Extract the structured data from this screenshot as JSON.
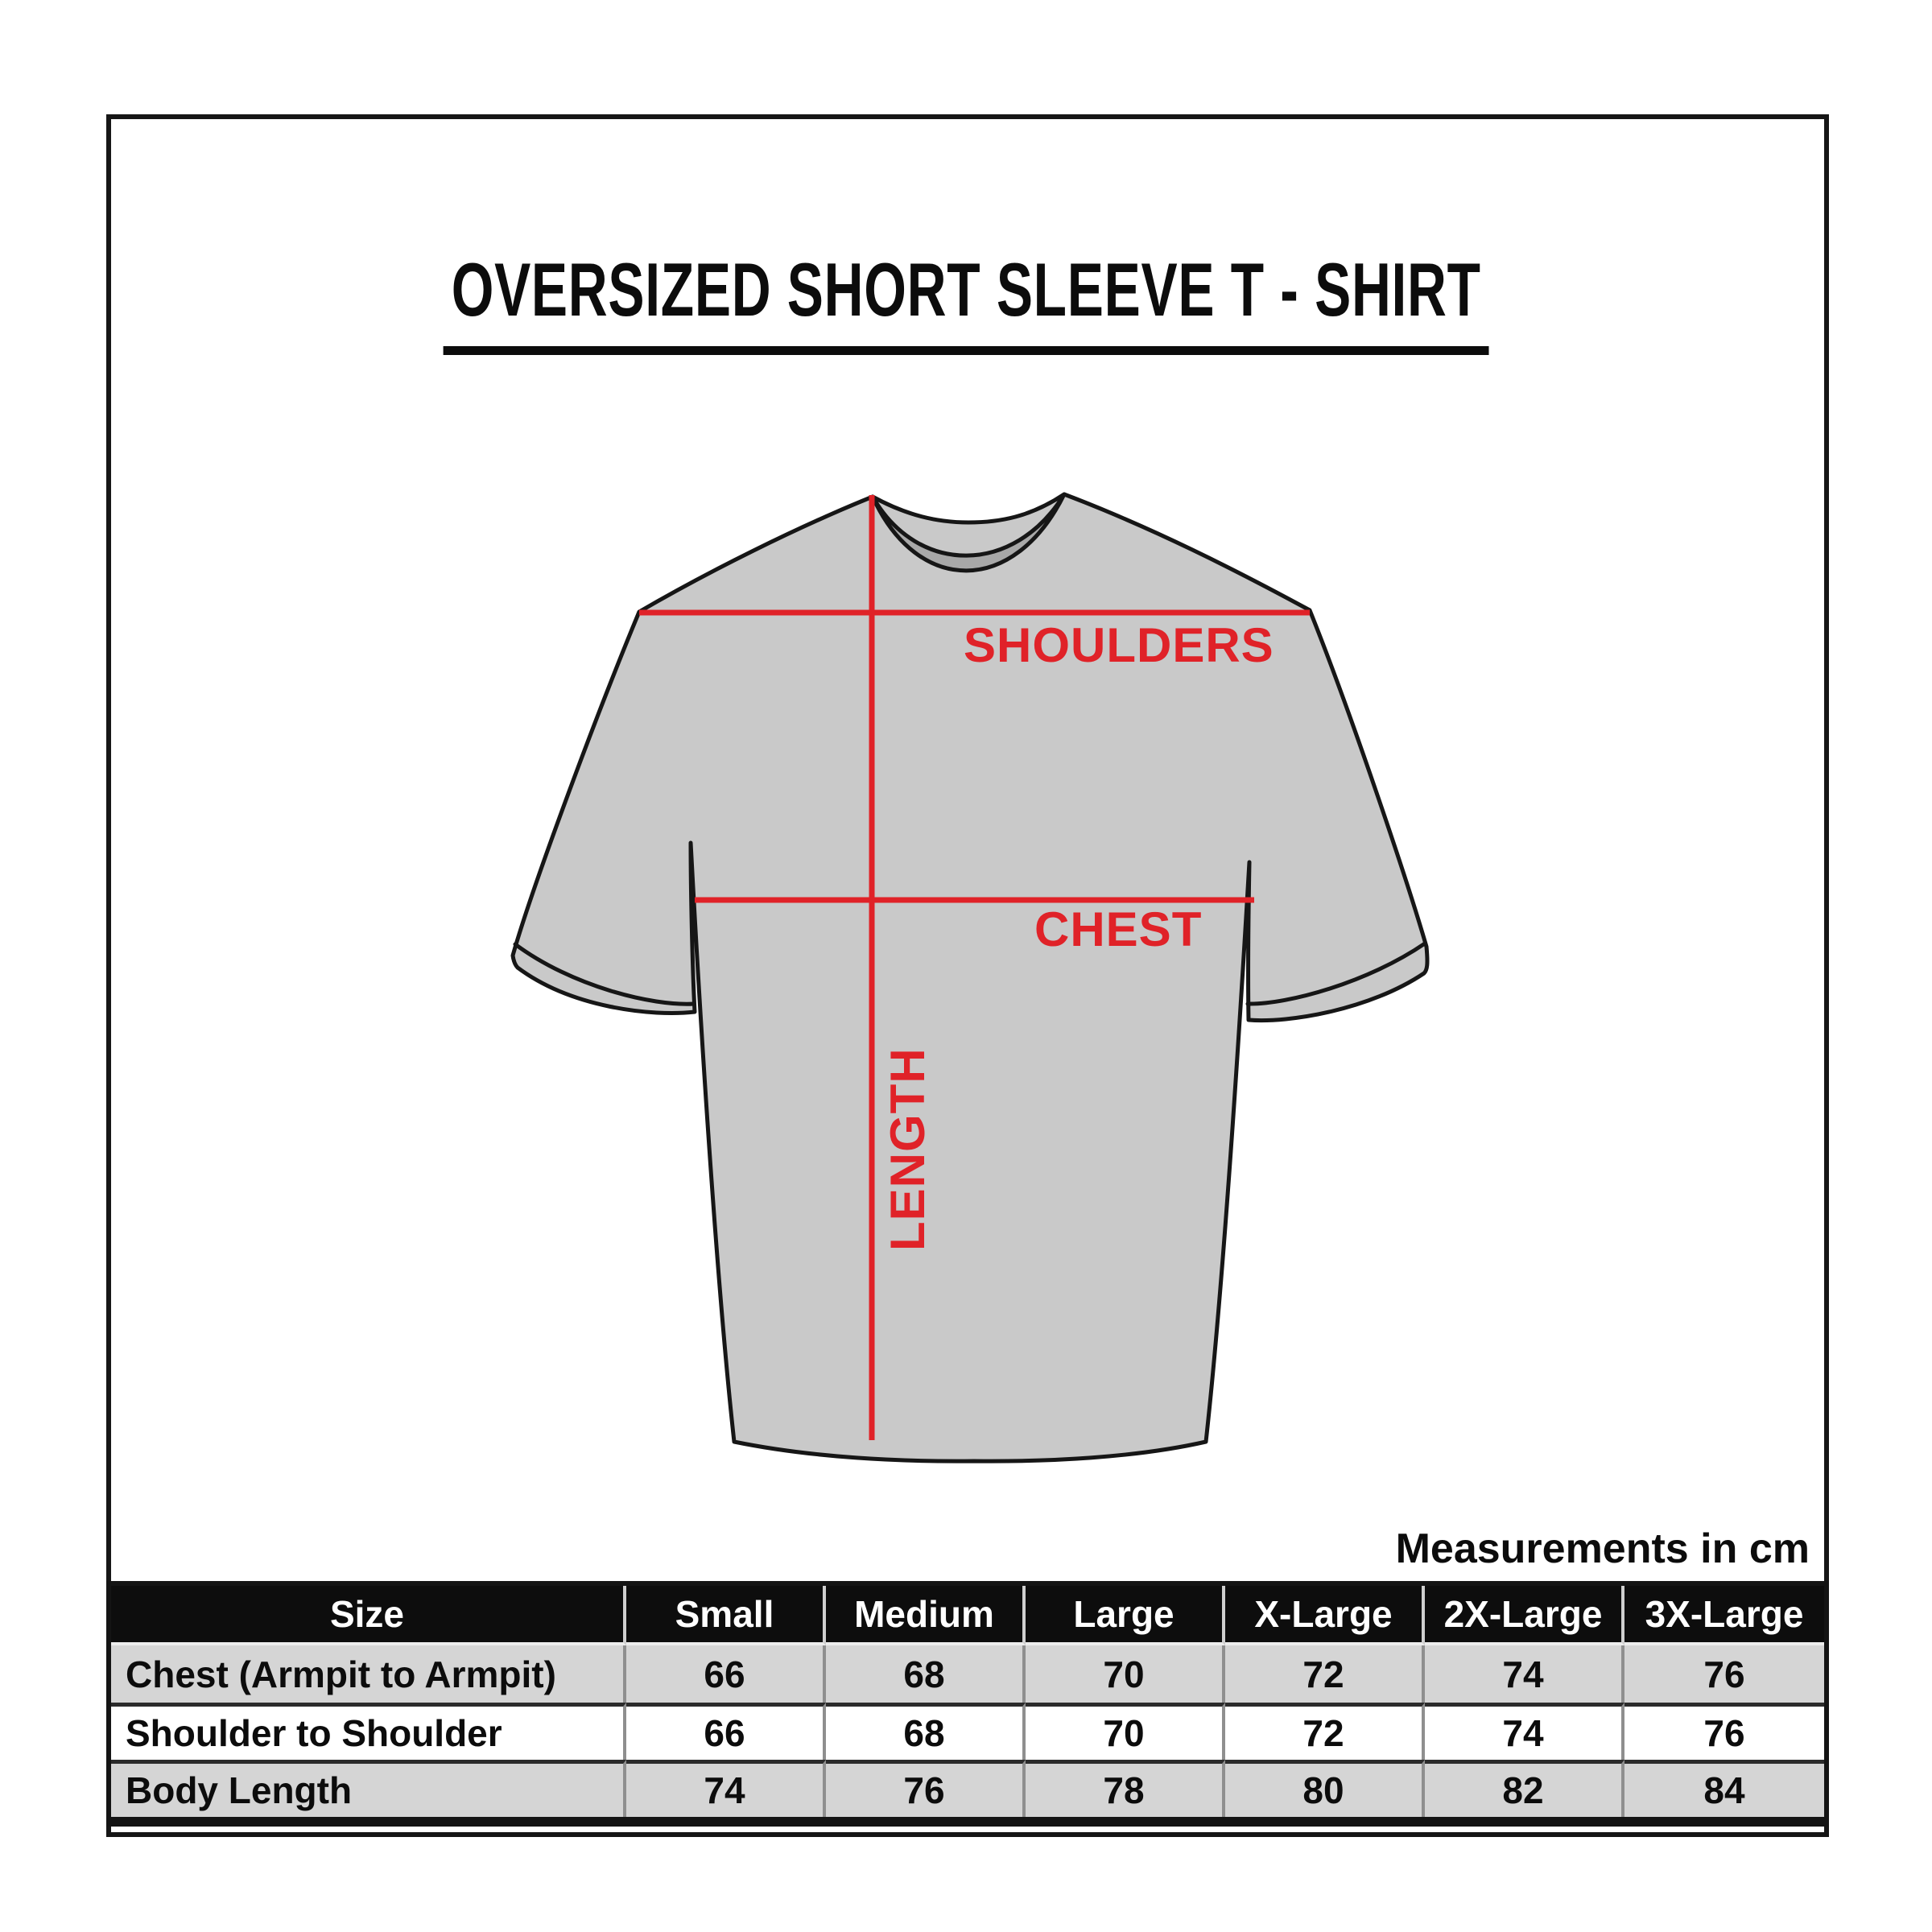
{
  "page": {
    "title": "OVERSIZED SHORT SLEEVE T - SHIRT",
    "units_note": "Measurements in cm"
  },
  "diagram": {
    "labels": {
      "shoulders": "SHOULDERS",
      "chest": "CHEST",
      "length": "LENGTH"
    }
  },
  "colors": {
    "accent_red": "#e02228",
    "shirt_fill": "#c9c9c9",
    "collar_fill": "#a8a8a8",
    "outline_ink": "#161616",
    "table_header_bg": "#0d0d0d",
    "table_row_alt_bg": "#d5d5d5"
  },
  "size_table": {
    "columns": [
      "Size",
      "Small",
      "Medium",
      "Large",
      "X-Large",
      "2X-Large",
      "3X-Large"
    ],
    "rows": [
      {
        "label": "Chest (Armpit to Armpit)",
        "values": [
          "66",
          "68",
          "70",
          "72",
          "74",
          "76"
        ]
      },
      {
        "label": "Shoulder to Shoulder",
        "values": [
          "66",
          "68",
          "70",
          "72",
          "74",
          "76"
        ]
      },
      {
        "label": "Body Length",
        "values": [
          "74",
          "76",
          "78",
          "80",
          "82",
          "84"
        ]
      }
    ]
  }
}
